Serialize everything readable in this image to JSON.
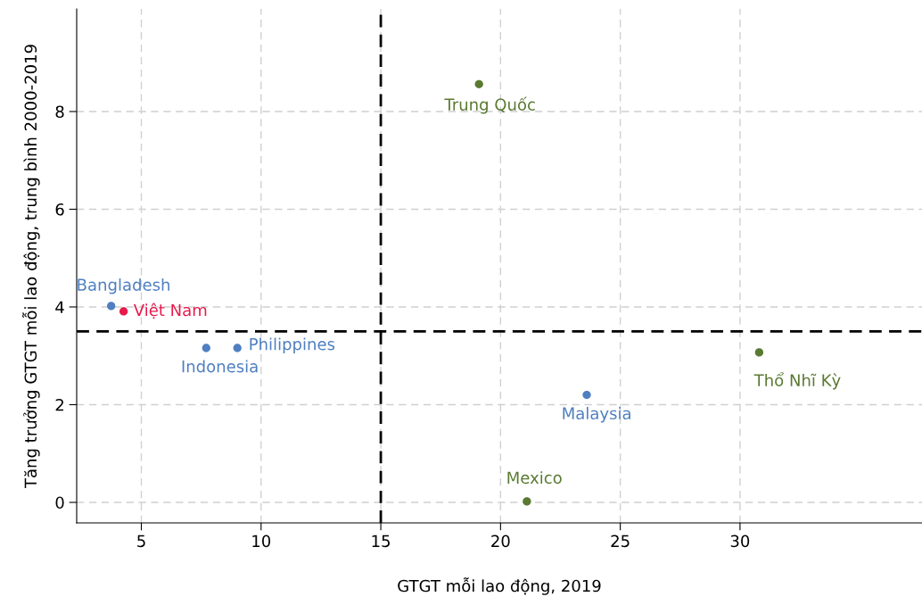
{
  "chart_data": {
    "type": "scatter",
    "xlabel": "GTGT mỗi lao động, 2019",
    "ylabel": "Tăng trưởng GTGT mỗi lao động, trung bình 2000-2019",
    "series": [
      {
        "name": "Bangladesh",
        "color": "#4f7fc0",
        "x": [
          3.74
        ],
        "values": [
          4.02
        ]
      },
      {
        "name": "Việt Nam",
        "color": "#e8194b",
        "x": [
          4.26
        ],
        "values": [
          3.91
        ]
      },
      {
        "name": "Indonesia",
        "color": "#4f7fc0",
        "x": [
          7.71
        ],
        "values": [
          3.16
        ]
      },
      {
        "name": "Philippines",
        "color": "#4f7fc0",
        "x": [
          9.01
        ],
        "values": [
          3.16
        ]
      },
      {
        "name": "Trung Quốc",
        "color": "#5a7a32",
        "x": [
          19.1
        ],
        "values": [
          8.56
        ]
      },
      {
        "name": "Thổ Nhĩ Kỳ",
        "color": "#5a7a32",
        "x": [
          30.8
        ],
        "values": [
          3.07
        ]
      },
      {
        "name": "Malaysia",
        "color": "#4f7fc0",
        "x": [
          23.6
        ],
        "values": [
          2.2
        ]
      },
      {
        "name": "Mexico",
        "color": "#5a7a32",
        "x": [
          21.1
        ],
        "values": [
          0.02
        ]
      }
    ],
    "xlim": [
      2.3,
      37.6
    ],
    "ylim": [
      -0.42,
      10.1
    ],
    "xticks": [
      5,
      10,
      15,
      20,
      25,
      30
    ],
    "yticks": [
      0,
      2,
      4,
      6,
      8
    ],
    "grid": true,
    "marker": "circle",
    "ref_lines": [
      {
        "axis": "x",
        "value": 15,
        "color": "#000000",
        "line_style": "dashed"
      },
      {
        "axis": "y",
        "value": 3.5,
        "color": "#000000",
        "line_style": "dashed"
      }
    ]
  }
}
